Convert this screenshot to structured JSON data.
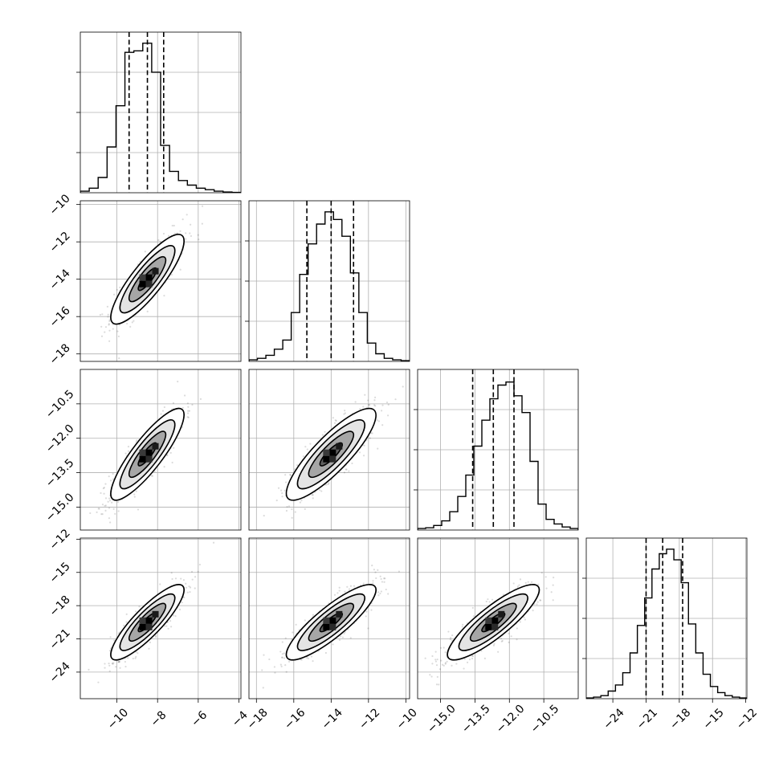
{
  "chart_data": {
    "type": "corner",
    "n_params": 4,
    "grid": true,
    "colors": {
      "line": "#000000",
      "grid": "#b0b0b0",
      "points": "#000000"
    },
    "parameters": [
      {
        "mean": -8.5,
        "sigma": 0.9,
        "quantiles": [
          -9.4,
          -8.5,
          -7.7
        ],
        "range": [
          -11.8,
          -3.9
        ],
        "ticks": [
          "−10",
          "−8",
          "−6",
          "−4"
        ],
        "tick_values": [
          -10,
          -8,
          -6,
          -4
        ],
        "hist_counts": [
          0.01,
          0.03,
          0.1,
          0.3,
          0.57,
          0.92,
          0.93,
          0.98,
          0.79,
          0.31,
          0.14,
          0.08,
          0.05,
          0.03,
          0.02,
          0.01,
          0.005,
          0.002
        ],
        "hist_yticks": [
          0.25,
          0.5,
          0.75
        ]
      },
      {
        "mean": -14.0,
        "sigma": 1.2,
        "quantiles": [
          -15.3,
          -14.0,
          -12.8
        ],
        "range": [
          -18.4,
          -9.8
        ],
        "ticks": [
          "−18",
          "−16",
          "−14",
          "−12",
          "−10"
        ],
        "tick_values": [
          -18,
          -16,
          -14,
          -12,
          -10
        ],
        "hist_counts": [
          0.01,
          0.02,
          0.04,
          0.08,
          0.14,
          0.32,
          0.57,
          0.77,
          0.9,
          0.98,
          0.93,
          0.82,
          0.58,
          0.32,
          0.12,
          0.05,
          0.02,
          0.01,
          0.005
        ],
        "hist_yticks": [
          0.25,
          0.5,
          0.75
        ]
      },
      {
        "mean": -12.7,
        "sigma": 1.0,
        "quantiles": [
          -13.6,
          -12.7,
          -11.8
        ],
        "range": [
          -16.0,
          -9.0
        ],
        "ticks": [
          "−15.0",
          "−13.5",
          "−12.0",
          "−10.5"
        ],
        "tick_values": [
          -15.0,
          -13.5,
          -12.0,
          -10.5
        ],
        "hist_counts": [
          0.01,
          0.015,
          0.03,
          0.06,
          0.12,
          0.22,
          0.36,
          0.55,
          0.72,
          0.86,
          0.95,
          0.97,
          0.88,
          0.77,
          0.45,
          0.17,
          0.07,
          0.04,
          0.02,
          0.01
        ],
        "hist_yticks": [
          0.25,
          0.5,
          0.75
        ]
      },
      {
        "mean": -19.5,
        "sigma": 1.7,
        "quantiles": [
          -21.0,
          -19.5,
          -17.7
        ],
        "range": [
          -26.4,
          -11.9
        ],
        "ticks": [
          "−24",
          "−21",
          "−18",
          "−15",
          "−12"
        ],
        "tick_values": [
          -24,
          -21,
          -18,
          -15,
          -12
        ],
        "hist_counts": [
          0.005,
          0.01,
          0.02,
          0.05,
          0.09,
          0.17,
          0.3,
          0.48,
          0.66,
          0.85,
          0.95,
          0.98,
          0.91,
          0.76,
          0.49,
          0.3,
          0.16,
          0.08,
          0.04,
          0.02,
          0.01,
          0.005
        ],
        "hist_yticks": [
          0.25,
          0.5,
          0.75
        ]
      }
    ],
    "correlations": [
      [
        1,
        0.85,
        0.86,
        0.86
      ],
      [
        0.85,
        1,
        0.85,
        0.86
      ],
      [
        0.86,
        0.85,
        1,
        0.86
      ],
      [
        0.86,
        0.86,
        0.86,
        1
      ]
    ],
    "contour_levels_sigma": [
      0.5,
      1.0,
      1.5,
      2.0
    ],
    "n_scatter_points": 600
  }
}
